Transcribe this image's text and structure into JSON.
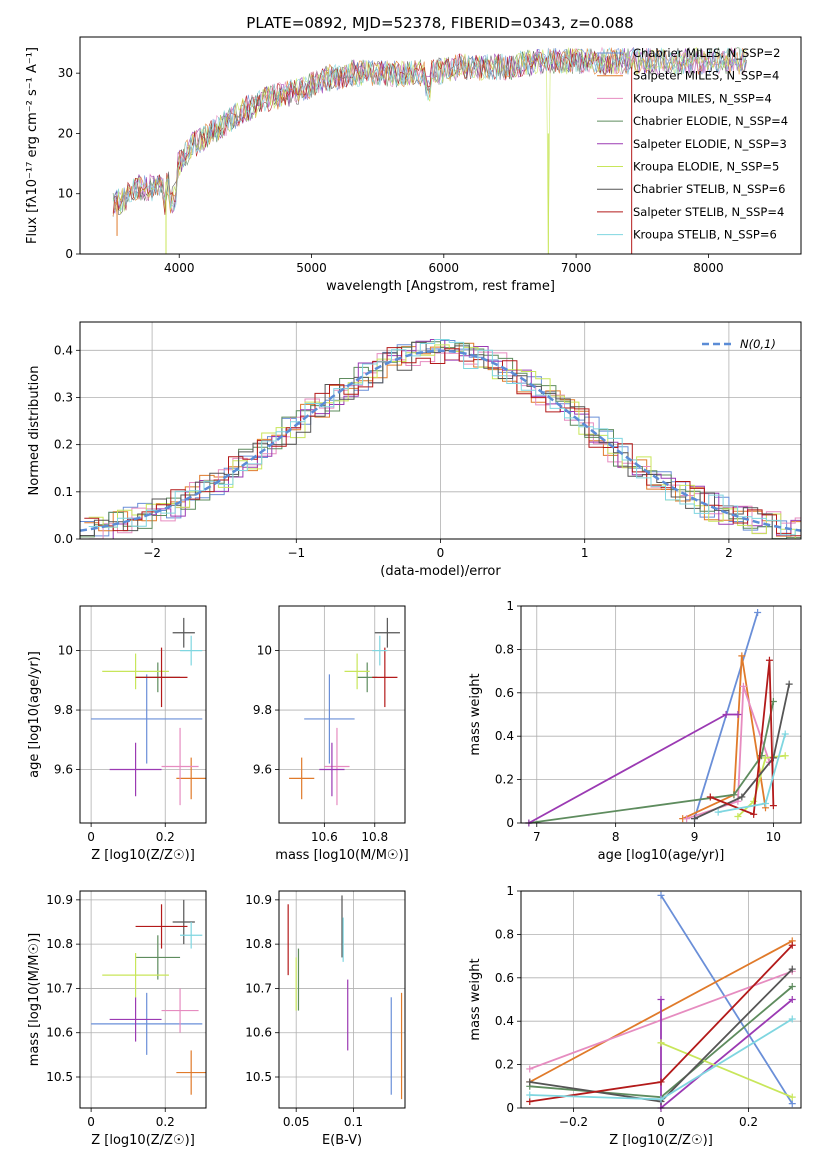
{
  "figure": {
    "title": "PLATE=0892, MJD=52378, FIBERID=0343, z=0.088"
  },
  "colors": [
    "#6a8fd8",
    "#e07a2a",
    "#e68cc0",
    "#5e8c5e",
    "#9b3ab3",
    "#c8e65a",
    "#555555",
    "#b31a1a",
    "#7fd6e0"
  ],
  "chart_data": [
    {
      "id": "spectrum",
      "type": "line",
      "xlabel": "wavelength [Angstrom, rest frame]",
      "ylabel": "Flux [fλ10⁻¹⁷ erg cm⁻² s⁻¹ A⁻¹]",
      "xlim": [
        3250,
        8700
      ],
      "ylim": [
        0,
        36
      ],
      "xticks": [
        4000,
        5000,
        6000,
        7000,
        8000
      ],
      "yticks": [
        0,
        10,
        20,
        30
      ],
      "grid": false,
      "legend_position": "right",
      "legend": [
        "Chabrier MILES, N_SSP=2",
        "Salpeter MILES, N_SSP=4",
        "Kroupa MILES, N_SSP=4",
        "Chabrier ELODIE, N_SSP=4",
        "Salpeter ELODIE, N_SSP=3",
        "Kroupa ELODIE, N_SSP=5",
        "Chabrier STELIB, N_SSP=6",
        "Salpeter STELIB, N_SSP=4",
        "Kroupa STELIB, N_SSP=6"
      ],
      "series": [
        {
          "wavelength": [
            3500,
            3700,
            3900,
            4000,
            4100,
            4300,
            4500,
            4700,
            4900,
            5100,
            5300,
            5500,
            5700,
            5900,
            6100,
            6300,
            6500,
            6700,
            6900,
            7100,
            7300,
            7500,
            7700,
            7900,
            8100,
            8300
          ],
          "flux": [
            8,
            11,
            11,
            15,
            18,
            21,
            24,
            26,
            27,
            29,
            30,
            30,
            30,
            30,
            31,
            31,
            31,
            32,
            32,
            32,
            32,
            32,
            32,
            32,
            32,
            32
          ]
        }
      ]
    },
    {
      "id": "residuals",
      "type": "histogram",
      "xlabel": "(data-model)/error",
      "ylabel": "Normed distribution",
      "xlim": [
        -2.5,
        2.5
      ],
      "ylim": [
        0,
        0.46
      ],
      "xticks": [
        -2,
        -1,
        0,
        1,
        2
      ],
      "yticks": [
        0.0,
        0.1,
        0.2,
        0.3,
        0.4
      ],
      "grid": true,
      "legend_position": "top-right",
      "legend": [
        "N(0,1)"
      ],
      "bin_width": 0.1
    },
    {
      "id": "age-vs-Z",
      "type": "errorbar",
      "xlabel": "Z [log10(Z/Z☉)]",
      "ylabel": "age  [log10(age/yr)]",
      "xlim": [
        -0.03,
        0.31
      ],
      "ylim": [
        9.42,
        10.15
      ],
      "xticks": [
        0.0,
        0.2
      ],
      "yticks": [
        9.6,
        9.8,
        10.0
      ],
      "grid": true,
      "points": [
        {
          "x": 0.15,
          "xerr": 0.15,
          "y": 9.77,
          "yerr": 0.15,
          "c": 0
        },
        {
          "x": 0.27,
          "xerr": 0.04,
          "y": 9.57,
          "yerr": 0.07,
          "c": 1
        },
        {
          "x": 0.24,
          "xerr": 0.05,
          "y": 9.61,
          "yerr": 0.13,
          "c": 2
        },
        {
          "x": 0.18,
          "xerr": 0.06,
          "y": 9.91,
          "yerr": 0.05,
          "c": 3
        },
        {
          "x": 0.12,
          "xerr": 0.07,
          "y": 9.6,
          "yerr": 0.09,
          "c": 4
        },
        {
          "x": 0.12,
          "xerr": 0.09,
          "y": 9.93,
          "yerr": 0.06,
          "c": 5
        },
        {
          "x": 0.25,
          "xerr": 0.03,
          "y": 10.06,
          "yerr": 0.05,
          "c": 6
        },
        {
          "x": 0.19,
          "xerr": 0.07,
          "y": 9.91,
          "yerr": 0.1,
          "c": 7
        },
        {
          "x": 0.27,
          "xerr": 0.03,
          "y": 10.0,
          "yerr": 0.05,
          "c": 8
        }
      ]
    },
    {
      "id": "age-vs-mass",
      "type": "errorbar",
      "xlabel": "mass [log10(M/M☉)]",
      "ylabel": "",
      "xlim": [
        10.42,
        10.92
      ],
      "ylim": [
        9.42,
        10.15
      ],
      "xticks": [
        10.6,
        10.8
      ],
      "yticks": [
        9.6,
        9.8,
        10.0
      ],
      "grid": true,
      "points": [
        {
          "x": 10.62,
          "xerr": 0.1,
          "y": 9.77,
          "yerr": 0.15,
          "c": 0
        },
        {
          "x": 10.51,
          "xerr": 0.05,
          "y": 9.57,
          "yerr": 0.07,
          "c": 1
        },
        {
          "x": 10.65,
          "xerr": 0.05,
          "y": 9.61,
          "yerr": 0.13,
          "c": 2
        },
        {
          "x": 10.77,
          "xerr": 0.04,
          "y": 9.91,
          "yerr": 0.05,
          "c": 3
        },
        {
          "x": 10.63,
          "xerr": 0.05,
          "y": 9.6,
          "yerr": 0.09,
          "c": 4
        },
        {
          "x": 10.73,
          "xerr": 0.05,
          "y": 9.93,
          "yerr": 0.06,
          "c": 5
        },
        {
          "x": 10.85,
          "xerr": 0.05,
          "y": 10.06,
          "yerr": 0.05,
          "c": 6
        },
        {
          "x": 10.84,
          "xerr": 0.05,
          "y": 9.91,
          "yerr": 0.1,
          "c": 7
        },
        {
          "x": 10.82,
          "xerr": 0.03,
          "y": 10.0,
          "yerr": 0.05,
          "c": 8
        }
      ]
    },
    {
      "id": "weight-vs-age",
      "type": "line",
      "xlabel": "age  [log10(age/yr)]",
      "ylabel": "mass weight",
      "xlim": [
        6.8,
        10.35
      ],
      "ylim": [
        0,
        1
      ],
      "xticks": [
        7,
        8,
        9,
        10
      ],
      "yticks": [
        0.0,
        0.2,
        0.4,
        0.6,
        0.8,
        1.0
      ],
      "grid": true,
      "series": [
        {
          "c": 0,
          "x": [
            9.0,
            9.8
          ],
          "y": [
            0.02,
            0.97
          ]
        },
        {
          "c": 1,
          "x": [
            8.85,
            9.5,
            9.6,
            9.9
          ],
          "y": [
            0.02,
            0.13,
            0.77,
            0.07
          ]
        },
        {
          "c": 2,
          "x": [
            8.9,
            9.55,
            9.62,
            9.95
          ],
          "y": [
            0.02,
            0.1,
            0.63,
            0.28
          ]
        },
        {
          "c": 3,
          "x": [
            6.9,
            9.5,
            9.85,
            10.0
          ],
          "y": [
            0.0,
            0.13,
            0.31,
            0.56
          ]
        },
        {
          "c": 4,
          "x": [
            6.9,
            9.4,
            9.55
          ],
          "y": [
            0.0,
            0.5,
            0.5
          ]
        },
        {
          "c": 5,
          "x": [
            9.55,
            9.75,
            9.9,
            10.15
          ],
          "y": [
            0.03,
            0.1,
            0.3,
            0.31
          ]
        },
        {
          "c": 6,
          "x": [
            9.0,
            9.6,
            10.0,
            10.2
          ],
          "y": [
            0.02,
            0.12,
            0.3,
            0.64
          ]
        },
        {
          "c": 7,
          "x": [
            9.2,
            9.75,
            9.95,
            10.0
          ],
          "y": [
            0.12,
            0.04,
            0.75,
            0.08
          ]
        },
        {
          "c": 8,
          "x": [
            9.3,
            9.9,
            10.15
          ],
          "y": [
            0.05,
            0.09,
            0.41
          ]
        }
      ]
    },
    {
      "id": "mass-vs-Z",
      "type": "errorbar",
      "xlabel": "Z [log10(Z/Z☉)]",
      "ylabel": "mass [log10(M/M☉)]",
      "xlim": [
        -0.03,
        0.31
      ],
      "ylim": [
        10.43,
        10.92
      ],
      "xticks": [
        0.0,
        0.2
      ],
      "yticks": [
        10.5,
        10.6,
        10.7,
        10.8,
        10.9
      ],
      "grid": true,
      "points": [
        {
          "x": 0.15,
          "xerr": 0.15,
          "y": 10.62,
          "yerr": 0.07,
          "c": 0
        },
        {
          "x": 0.27,
          "xerr": 0.04,
          "y": 10.51,
          "yerr": 0.05,
          "c": 1
        },
        {
          "x": 0.24,
          "xerr": 0.05,
          "y": 10.65,
          "yerr": 0.05,
          "c": 2
        },
        {
          "x": 0.18,
          "xerr": 0.06,
          "y": 10.77,
          "yerr": 0.05,
          "c": 3
        },
        {
          "x": 0.12,
          "xerr": 0.07,
          "y": 10.63,
          "yerr": 0.05,
          "c": 4
        },
        {
          "x": 0.12,
          "xerr": 0.09,
          "y": 10.73,
          "yerr": 0.05,
          "c": 5
        },
        {
          "x": 0.25,
          "xerr": 0.03,
          "y": 10.85,
          "yerr": 0.05,
          "c": 6
        },
        {
          "x": 0.19,
          "xerr": 0.07,
          "y": 10.84,
          "yerr": 0.05,
          "c": 7
        },
        {
          "x": 0.27,
          "xerr": 0.03,
          "y": 10.82,
          "yerr": 0.03,
          "c": 8
        }
      ]
    },
    {
      "id": "mass-vs-ebv",
      "type": "errorbar",
      "xlabel": "E(B-V)",
      "ylabel": "",
      "xlim": [
        0.035,
        0.145
      ],
      "ylim": [
        10.43,
        10.92
      ],
      "xticks": [
        0.05,
        0.1
      ],
      "yticks": [
        10.5,
        10.6,
        10.7,
        10.8,
        10.9
      ],
      "grid": true,
      "points": [
        {
          "x": 0.133,
          "xerr": 0,
          "y": 10.57,
          "yerr": 0.11,
          "c": 0
        },
        {
          "x": 0.142,
          "xerr": 0,
          "y": 10.57,
          "yerr": 0.12,
          "c": 1
        },
        {
          "x": 0.052,
          "xerr": 0,
          "y": 10.72,
          "yerr": 0.07,
          "c": 3
        },
        {
          "x": 0.095,
          "xerr": 0,
          "y": 10.64,
          "yerr": 0.08,
          "c": 4
        },
        {
          "x": 0.05,
          "xerr": 0,
          "y": 10.71,
          "yerr": 0.06,
          "c": 5
        },
        {
          "x": 0.09,
          "xerr": 0,
          "y": 10.84,
          "yerr": 0.07,
          "c": 6
        },
        {
          "x": 0.043,
          "xerr": 0,
          "y": 10.81,
          "yerr": 0.08,
          "c": 7
        },
        {
          "x": 0.091,
          "xerr": 0,
          "y": 10.81,
          "yerr": 0.05,
          "c": 8
        }
      ]
    },
    {
      "id": "weight-vs-Z",
      "type": "line",
      "xlabel": "Z [log10(Z/Z☉)]",
      "ylabel": "mass weight",
      "xlim": [
        -0.32,
        0.32
      ],
      "ylim": [
        0,
        1
      ],
      "xticks": [
        -0.2,
        0.0,
        0.2
      ],
      "yticks": [
        0.0,
        0.2,
        0.4,
        0.6,
        0.8,
        1.0
      ],
      "grid": true,
      "series": [
        {
          "c": 0,
          "x": [
            0.0,
            0.3
          ],
          "y": [
            0.98,
            0.02
          ]
        },
        {
          "c": 1,
          "x": [
            -0.3,
            0.3
          ],
          "y": [
            0.12,
            0.77
          ]
        },
        {
          "c": 2,
          "x": [
            -0.3,
            0.3
          ],
          "y": [
            0.18,
            0.63
          ]
        },
        {
          "c": 3,
          "x": [
            -0.3,
            0.0,
            0.3
          ],
          "y": [
            0.1,
            0.05,
            0.56
          ]
        },
        {
          "c": 4,
          "x": [
            0.0,
            0.0,
            0.3
          ],
          "y": [
            0.5,
            0.0,
            0.5
          ]
        },
        {
          "c": 5,
          "x": [
            0.0,
            0.0,
            0.3
          ],
          "y": [
            0.3,
            0.3,
            0.05
          ]
        },
        {
          "c": 6,
          "x": [
            -0.3,
            0.0,
            0.3
          ],
          "y": [
            0.12,
            0.03,
            0.64
          ]
        },
        {
          "c": 7,
          "x": [
            -0.3,
            0.0,
            0.3
          ],
          "y": [
            0.03,
            0.12,
            0.75
          ]
        },
        {
          "c": 8,
          "x": [
            -0.3,
            0.0,
            0.3
          ],
          "y": [
            0.06,
            0.04,
            0.41
          ]
        }
      ]
    }
  ]
}
